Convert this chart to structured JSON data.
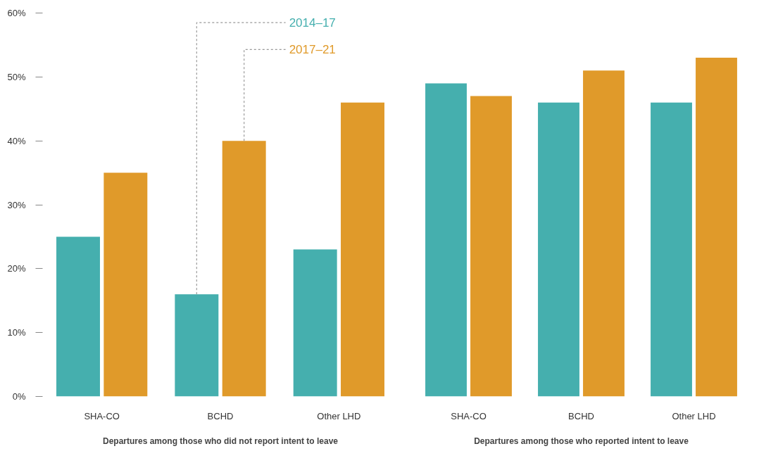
{
  "chart_data": [
    {
      "type": "bar",
      "categories": [
        "SHA-CO",
        "BCHD",
        "Other LHD"
      ],
      "xlabel": "Departures among those who did not report intent to leave",
      "ylim": [
        0,
        60
      ],
      "yticks": [
        {
          "value": 0,
          "label": "0%"
        },
        {
          "value": 10,
          "label": "10%"
        },
        {
          "value": 20,
          "label": "20%"
        },
        {
          "value": 30,
          "label": "30%"
        },
        {
          "value": 40,
          "label": "40%"
        },
        {
          "value": 50,
          "label": "50%"
        },
        {
          "value": 60,
          "label": "60%"
        }
      ],
      "series": [
        {
          "name": "2014–17",
          "color": "#45afae",
          "values": [
            25,
            16,
            23
          ]
        },
        {
          "name": "2017–21",
          "color": "#e09a2a",
          "values": [
            35,
            40,
            46
          ]
        }
      ]
    },
    {
      "type": "bar",
      "categories": [
        "SHA-CO",
        "BCHD",
        "Other LHD"
      ],
      "xlabel": "Departures among those who reported intent to leave",
      "ylim": [
        0,
        60
      ],
      "tick_labels": "x",
      "series": [
        {
          "color": "#45afae",
          "values": [
            49,
            46,
            46
          ]
        },
        {
          "color": "#e09a2a",
          "values": [
            47,
            51,
            53
          ]
        }
      ]
    }
  ]
}
